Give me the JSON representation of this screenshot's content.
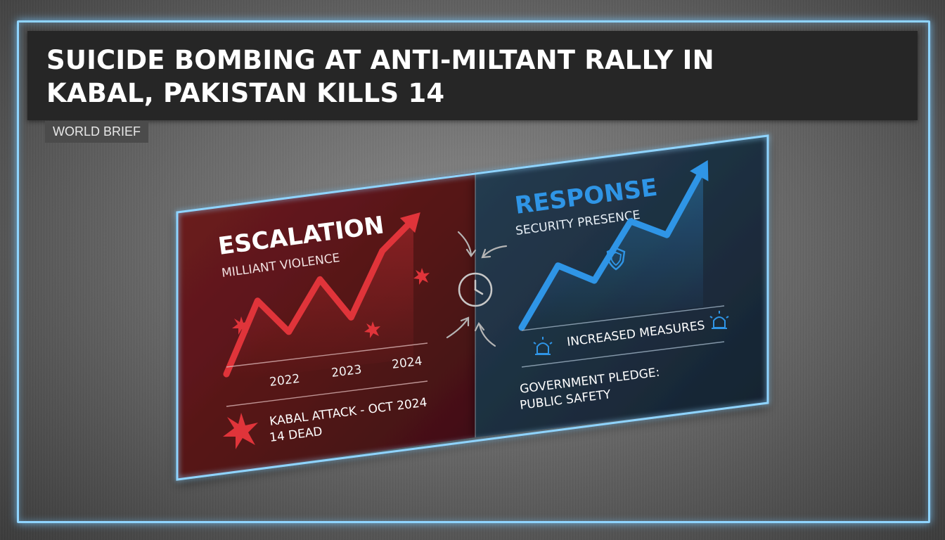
{
  "headline": "SUICIDE BOMBING AT ANTI-MILTANT RALLY IN\nKABAL, PAKISTAN KILLS 14",
  "category_tag": "WORLD BRIEF",
  "left_panel": {
    "title": "ESCALATION",
    "subtitle": "MILLIANT VIOLENCE",
    "years": [
      "2022",
      "2023",
      "2024"
    ],
    "event_line1": "KABAL ATTACK - OCT 2024",
    "event_line2": "14 DEAD",
    "trend": [
      0.05,
      0.55,
      0.3,
      0.65,
      0.35,
      0.8,
      1.0
    ]
  },
  "right_panel": {
    "title": "RESPONSE",
    "subtitle": "SECURITY PRESENCE",
    "measures": "INCREASED MEASURES",
    "pledge_line1": "GOVERNMENT PLEDGE:",
    "pledge_line2": "PUBLIC SAFETY",
    "trend": [
      0.0,
      0.42,
      0.28,
      0.68,
      0.55,
      1.0
    ]
  },
  "colors": {
    "frame_glow": "#8fd4ff",
    "escalation_red": "#e0343a",
    "response_blue": "#2f95e6",
    "panel_left": "#5a1618",
    "panel_right": "#1e3142"
  },
  "icons": [
    "burst-icon",
    "clock-icon",
    "shield-icon",
    "siren-icon"
  ]
}
